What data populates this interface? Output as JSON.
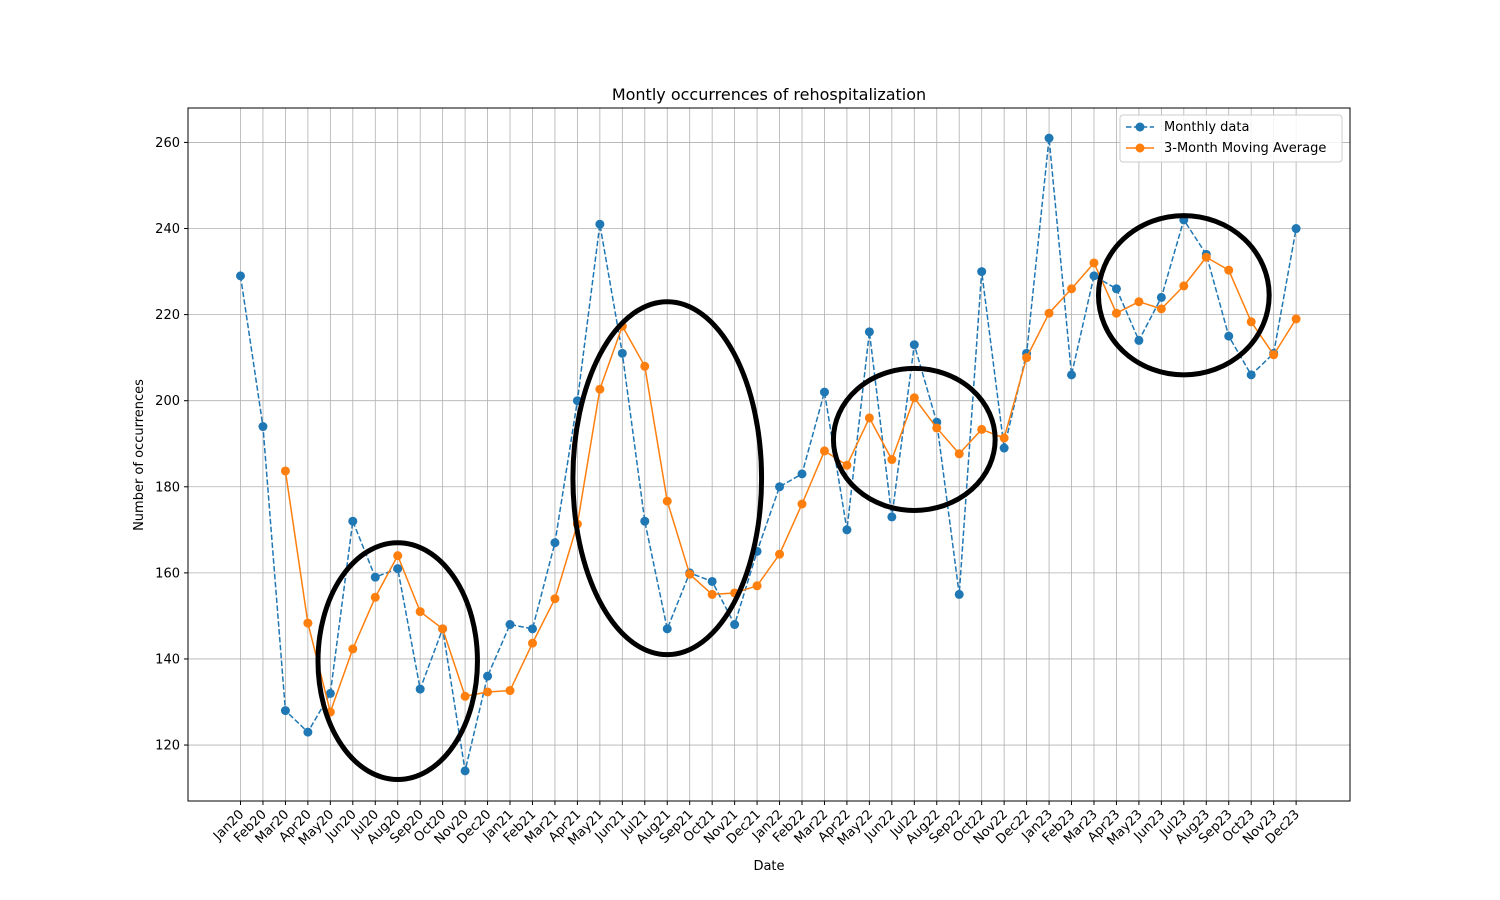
{
  "chart_data": {
    "type": "line",
    "title": "Montly occurrences of rehospitalization",
    "xlabel": "Date",
    "ylabel": "Number of occurrences",
    "ylim": [
      107,
      268
    ],
    "yticks": [
      120,
      140,
      160,
      180,
      200,
      220,
      240,
      260
    ],
    "grid": true,
    "legend_position": "top-right",
    "categories": [
      "Jan20",
      "Feb20",
      "Mar20",
      "Apr20",
      "May20",
      "Jun20",
      "Jul20",
      "Aug20",
      "Sep20",
      "Oct20",
      "Nov20",
      "Dec20",
      "Jan21",
      "Feb21",
      "Mar21",
      "Apr21",
      "May21",
      "Jun21",
      "Jul21",
      "Aug21",
      "Sep21",
      "Oct21",
      "Nov21",
      "Dec21",
      "Jan22",
      "Feb22",
      "Mar22",
      "Apr22",
      "May22",
      "Jun22",
      "Jul22",
      "Aug22",
      "Sep22",
      "Oct22",
      "Nov22",
      "Dec22",
      "Jan23",
      "Feb23",
      "Mar23",
      "Apr23",
      "May23",
      "Jun23",
      "Jul23",
      "Aug23",
      "Sep23",
      "Oct23",
      "Nov23",
      "Dec23"
    ],
    "series": [
      {
        "name": "Monthly data",
        "color": "#1f77b4",
        "style": "dashed",
        "values": [
          229,
          194,
          128,
          123,
          132,
          172,
          159,
          161,
          133,
          147,
          114,
          136,
          148,
          147,
          167,
          200,
          241,
          211,
          172,
          147,
          160,
          158,
          148,
          165,
          180,
          183,
          202,
          170,
          216,
          173,
          213,
          195,
          155,
          230,
          189,
          211,
          261,
          206,
          229,
          226,
          214,
          224,
          242,
          234,
          215,
          206,
          211,
          240
        ]
      },
      {
        "name": "3-Month Moving Average",
        "color": "#ff7f0e",
        "style": "solid",
        "values": [
          null,
          null,
          183.67,
          148.33,
          127.67,
          142.33,
          154.33,
          164.0,
          151.0,
          147.0,
          131.33,
          132.33,
          132.67,
          143.67,
          154.0,
          171.33,
          202.67,
          217.33,
          208.0,
          176.67,
          159.67,
          155.0,
          155.33,
          157.0,
          164.33,
          176.0,
          188.33,
          185.0,
          196.0,
          186.33,
          200.67,
          193.67,
          187.67,
          193.33,
          191.33,
          210.0,
          220.33,
          226.0,
          232.0,
          220.33,
          223.0,
          221.33,
          226.67,
          233.33,
          230.33,
          218.33,
          210.67,
          219.0
        ]
      }
    ],
    "annotations": [
      {
        "shape": "ellipse",
        "center": [
          "Aug20",
          139.5
        ],
        "half_width_months": 3.55,
        "half_height": 27.5
      },
      {
        "shape": "ellipse",
        "center": [
          "Aug21",
          182
        ],
        "half_width_months": 4.2,
        "half_height": 41
      },
      {
        "shape": "ellipse",
        "center": [
          "Jul22",
          191
        ],
        "half_width_months": 3.6,
        "half_height": 16.5
      },
      {
        "shape": "ellipse",
        "center": [
          "Jul23",
          224.5
        ],
        "half_width_months": 3.8,
        "half_height": 18.5
      }
    ]
  }
}
